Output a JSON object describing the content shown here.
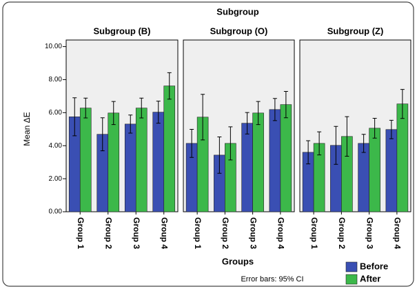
{
  "chart_data": {
    "type": "bar",
    "title": "Subgroup",
    "x_label": "Groups",
    "y_label": "Mean ΔE",
    "note": "Error bars: 95% CI",
    "ylim": [
      0,
      10.4
    ],
    "yticks": [
      {
        "value": 0,
        "label": "0.00"
      },
      {
        "value": 2,
        "label": "2.00"
      },
      {
        "value": 4,
        "label": "4.00"
      },
      {
        "value": 6,
        "label": "6.00"
      },
      {
        "value": 8,
        "label": "8.00"
      },
      {
        "value": 10,
        "label": "10.00"
      }
    ],
    "legend": [
      {
        "name": "Before",
        "color": "#3a4fb3"
      },
      {
        "name": "After",
        "color": "#3cb84a"
      }
    ],
    "facets": [
      {
        "title": "Subgroup (B)",
        "categories": [
          "Group 1",
          "Group 2",
          "Group 3",
          "Group 4"
        ],
        "series": [
          {
            "values": [
              5.75,
              4.69,
              5.31,
              6.03
            ],
            "errors": [
              1.15,
              1.0,
              0.55,
              0.67
            ]
          },
          {
            "values": [
              6.28,
              5.98,
              6.28,
              7.62
            ],
            "errors": [
              0.6,
              0.7,
              0.6,
              0.8
            ]
          }
        ]
      },
      {
        "title": "Subgroup (O)",
        "categories": [
          "Group 1",
          "Group 2",
          "Group 3",
          "Group 4"
        ],
        "series": [
          {
            "values": [
              4.14,
              3.43,
              5.36,
              6.19
            ],
            "errors": [
              0.85,
              1.1,
              0.65,
              0.67
            ]
          },
          {
            "values": [
              5.73,
              4.14,
              5.98,
              6.49
            ],
            "errors": [
              1.38,
              1.0,
              0.7,
              0.8
            ]
          }
        ]
      },
      {
        "title": "Subgroup (Z)",
        "categories": [
          "Group 1",
          "Group 2",
          "Group 3",
          "Group 4"
        ],
        "series": [
          {
            "values": [
              3.6,
              4.02,
              4.14,
              4.98
            ],
            "errors": [
              0.7,
              1.15,
              0.55,
              0.56
            ]
          },
          {
            "values": [
              4.14,
              4.56,
              5.06,
              6.53
            ],
            "errors": [
              0.7,
              1.2,
              0.6,
              0.88
            ]
          }
        ]
      }
    ]
  }
}
